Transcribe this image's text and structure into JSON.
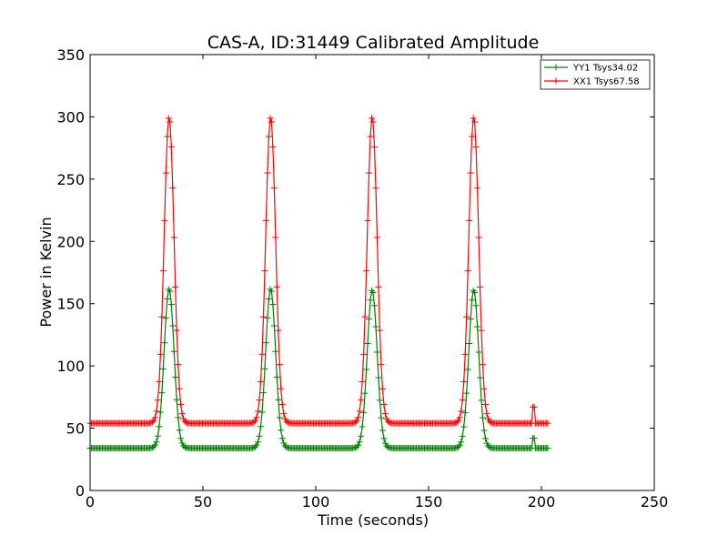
{
  "chart_data": {
    "type": "line",
    "title": "CAS-A, ID:31449 Calibrated Amplitude",
    "xlabel": "Time (seconds)",
    "ylabel": "Power in Kelvin",
    "xlim": [
      0,
      250
    ],
    "ylim": [
      0,
      350
    ],
    "xticks": [
      0,
      50,
      100,
      150,
      200,
      250
    ],
    "yticks": [
      0,
      50,
      100,
      150,
      200,
      250,
      300,
      350
    ],
    "grid": false,
    "legend_position": "top-right",
    "marker": "+",
    "series": [
      {
        "name": "YY1 Tsys34.02",
        "color": "#008000",
        "baseline": 34,
        "x_range": [
          0,
          203
        ],
        "peaks": [
          {
            "x": 35,
            "y": 162
          },
          {
            "x": 80,
            "y": 162
          },
          {
            "x": 125,
            "y": 161
          },
          {
            "x": 170,
            "y": 161
          }
        ],
        "blip": {
          "x_range": [
            196,
            197
          ],
          "y": 42
        }
      },
      {
        "name": "XX1 Tsys67.58",
        "color": "#ff0000",
        "baseline": 54,
        "x_range": [
          0,
          203
        ],
        "peaks": [
          {
            "x": 35,
            "y": 300
          },
          {
            "x": 80,
            "y": 300
          },
          {
            "x": 125,
            "y": 300
          },
          {
            "x": 170,
            "y": 300
          }
        ],
        "blip": {
          "x_range": [
            196,
            197
          ],
          "y": 67
        }
      }
    ]
  }
}
